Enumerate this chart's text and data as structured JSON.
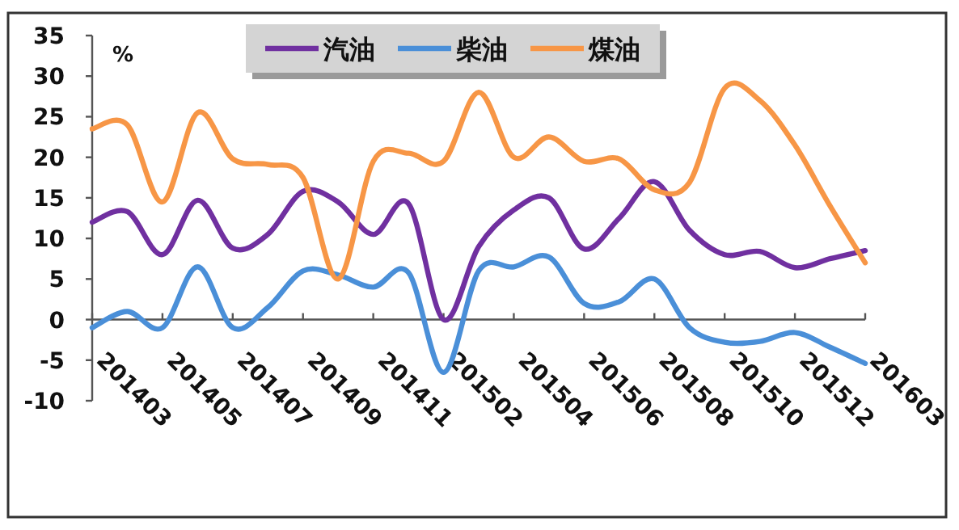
{
  "chart_data": {
    "type": "line",
    "ylabel": "%",
    "categories": [
      "201403",
      null,
      "201405",
      null,
      "201407",
      null,
      "201409",
      null,
      "201411",
      null,
      "201502",
      null,
      "201504",
      null,
      "201506",
      null,
      "201508",
      null,
      "201510",
      null,
      "201512",
      null,
      "201603"
    ],
    "series": [
      {
        "name": "汽油",
        "color": "#7030a0",
        "values": [
          12,
          13.3,
          8,
          14.7,
          8.8,
          10.5,
          15.8,
          14.5,
          10.5,
          14.3,
          0,
          9,
          13.5,
          15,
          8.7,
          12.5,
          17,
          11,
          8,
          8.4,
          6.4,
          7.5,
          8.5
        ]
      },
      {
        "name": "柴油",
        "color": "#4a8fd8",
        "values": [
          -1,
          1,
          -1,
          6.5,
          -1,
          1.5,
          6,
          5.5,
          4,
          5.8,
          -6.5,
          6,
          6.5,
          7.7,
          2,
          2.2,
          5,
          -1,
          -2.8,
          -2.7,
          -1.6,
          -3.4,
          -5.4
        ]
      },
      {
        "name": "煤油",
        "color": "#f79646",
        "values": [
          23.5,
          24,
          14.5,
          25.5,
          19.8,
          19.1,
          17.5,
          5,
          19.5,
          20.5,
          19.5,
          28,
          20,
          22.5,
          19.5,
          19.8,
          16,
          16.9,
          28.5,
          27,
          21.5,
          14,
          7
        ]
      }
    ],
    "ylim": [
      -10,
      35
    ],
    "yticks": [
      -10,
      -5,
      0,
      5,
      10,
      15,
      20,
      25,
      30,
      35
    ],
    "legend": "top",
    "marker": "none",
    "line_style": "solid"
  }
}
